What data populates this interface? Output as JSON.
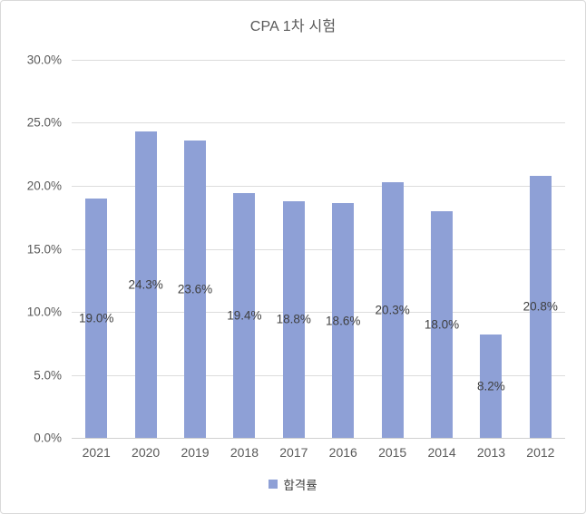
{
  "chart_data": {
    "type": "bar",
    "title": "CPA 1차 시험",
    "categories": [
      "2021",
      "2020",
      "2019",
      "2018",
      "2017",
      "2016",
      "2015",
      "2014",
      "2013",
      "2012"
    ],
    "series": [
      {
        "name": "합격률",
        "values": [
          19.0,
          24.3,
          23.6,
          19.4,
          18.8,
          18.6,
          20.3,
          18.0,
          8.2,
          20.8
        ]
      }
    ],
    "data_labels": [
      "19.0%",
      "24.3%",
      "23.6%",
      "19.4%",
      "18.8%",
      "18.6%",
      "20.3%",
      "18.0%",
      "8.2%",
      "20.8%"
    ],
    "ytick_labels": [
      "30.0%",
      "25.0%",
      "20.0%",
      "15.0%",
      "10.0%",
      "5.0%",
      "0.0%"
    ],
    "xlabel": "",
    "ylabel": "",
    "ylim": [
      0,
      30
    ],
    "ytick_step": 5,
    "grid": true,
    "legend_position": "bottom",
    "data_label_position": "inside-center",
    "bar_color": "#8ea0d6",
    "axis_text_color": "#595959",
    "label_text_color": "#3f3f3f"
  }
}
